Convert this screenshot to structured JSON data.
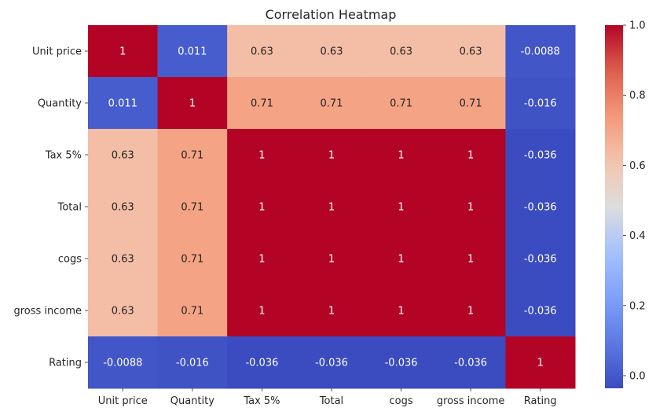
{
  "chart_data": {
    "type": "heatmap",
    "title": "Correlation Heatmap",
    "xlabel": "",
    "ylabel": "",
    "x_categories": [
      "Unit price",
      "Quantity",
      "Tax 5%",
      "Total",
      "cogs",
      "gross income",
      "Rating"
    ],
    "y_categories": [
      "Unit price",
      "Quantity",
      "Tax 5%",
      "Total",
      "cogs",
      "gross income",
      "Rating"
    ],
    "values": [
      [
        1,
        0.011,
        0.63,
        0.63,
        0.63,
        0.63,
        -0.0088
      ],
      [
        0.011,
        1,
        0.71,
        0.71,
        0.71,
        0.71,
        -0.016
      ],
      [
        0.63,
        0.71,
        1,
        1,
        1,
        1,
        -0.036
      ],
      [
        0.63,
        0.71,
        1,
        1,
        1,
        1,
        -0.036
      ],
      [
        0.63,
        0.71,
        1,
        1,
        1,
        1,
        -0.036
      ],
      [
        0.63,
        0.71,
        1,
        1,
        1,
        1,
        -0.036
      ],
      [
        -0.0088,
        -0.016,
        -0.036,
        -0.036,
        -0.036,
        -0.036,
        1
      ]
    ],
    "annotations": [
      [
        "1",
        "0.011",
        "0.63",
        "0.63",
        "0.63",
        "0.63",
        "-0.0088"
      ],
      [
        "0.011",
        "1",
        "0.71",
        "0.71",
        "0.71",
        "0.71",
        "-0.016"
      ],
      [
        "0.63",
        "0.71",
        "1",
        "1",
        "1",
        "1",
        "-0.036"
      ],
      [
        "0.63",
        "0.71",
        "1",
        "1",
        "1",
        "1",
        "-0.036"
      ],
      [
        "0.63",
        "0.71",
        "1",
        "1",
        "1",
        "1",
        "-0.036"
      ],
      [
        "0.63",
        "0.71",
        "1",
        "1",
        "1",
        "1",
        "-0.036"
      ],
      [
        "-0.0088",
        "-0.016",
        "-0.036",
        "-0.036",
        "-0.036",
        "-0.036",
        "1"
      ]
    ],
    "colormap": "coolwarm",
    "vmin": -0.036,
    "vmax": 1,
    "colorbar_ticks": [
      0.0,
      0.2,
      0.4,
      0.6,
      0.8,
      1.0
    ],
    "colorbar_tick_labels": [
      "0.0",
      "0.2",
      "0.4",
      "0.6",
      "0.8",
      "1.0"
    ],
    "legend_placement": "right"
  }
}
